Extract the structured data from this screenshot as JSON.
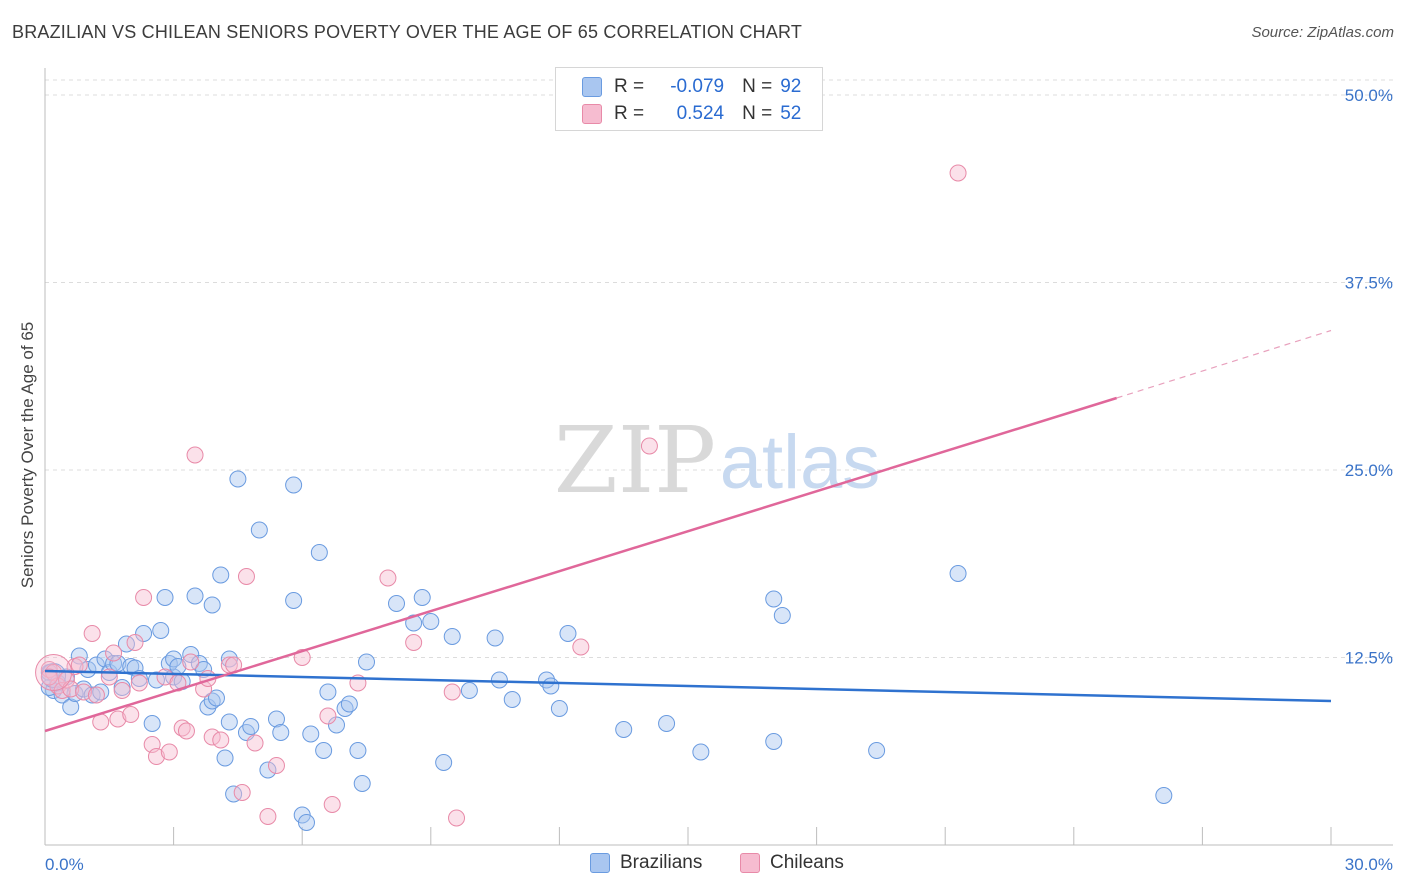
{
  "header": {
    "title": "BRAZILIAN VS CHILEAN SENIORS POVERTY OVER THE AGE OF 65 CORRELATION CHART",
    "source": "Source: ZipAtlas.com"
  },
  "watermark": {
    "zip": "ZIP",
    "atlas": "atlas"
  },
  "legend": {
    "rows": [
      {
        "r_label": "R =",
        "r_value": "-0.079",
        "n_label": "N =",
        "n_value": "92",
        "color": "#a9c6f0",
        "border": "#6a9be0"
      },
      {
        "r_label": "R =",
        "r_value": "0.524",
        "n_label": "N =",
        "n_value": "52",
        "color": "#f6bcd0",
        "border": "#e88aa8"
      }
    ]
  },
  "bottom_legend": {
    "brazilians": "Brazilians",
    "chileans": "Chileans"
  },
  "chart_data": {
    "type": "scatter",
    "title": "BRAZILIAN VS CHILEAN SENIORS POVERTY OVER THE AGE OF 65 CORRELATION CHART",
    "xlabel": "",
    "ylabel": "Seniors Poverty Over the Age of 65",
    "xlim": [
      0,
      30
    ],
    "ylim": [
      0,
      50
    ],
    "x_tick_labels": [
      "0.0%",
      "30.0%"
    ],
    "y_ticks": [
      12.5,
      25.0,
      37.5,
      50.0
    ],
    "y_tick_labels": [
      "12.5%",
      "25.0%",
      "37.5%",
      "50.0%"
    ],
    "grid": true,
    "legend_position": "top-center",
    "series": [
      {
        "name": "Brazilians",
        "color": "#6a9be0",
        "fill": "#a9c6f0",
        "r": "-0.079",
        "n": "92",
        "trend": {
          "x": [
            0,
            30
          ],
          "y": [
            11.6,
            9.6
          ]
        },
        "points": [
          [
            0.1,
            11.5
          ],
          [
            0.2,
            10.3
          ],
          [
            0.3,
            10.8
          ],
          [
            0.4,
            10.0
          ],
          [
            0.5,
            11.2
          ],
          [
            0.6,
            9.2
          ],
          [
            0.7,
            10.1
          ],
          [
            0.8,
            12.6
          ],
          [
            0.9,
            10.4
          ],
          [
            1.0,
            11.7
          ],
          [
            1.1,
            10.0
          ],
          [
            1.2,
            12.0
          ],
          [
            1.3,
            10.2
          ],
          [
            1.4,
            12.4
          ],
          [
            1.5,
            11.5
          ],
          [
            1.6,
            12.1
          ],
          [
            1.7,
            12.1
          ],
          [
            1.8,
            10.5
          ],
          [
            1.9,
            13.4
          ],
          [
            2.0,
            11.9
          ],
          [
            2.1,
            11.8
          ],
          [
            2.2,
            11.1
          ],
          [
            2.3,
            14.1
          ],
          [
            2.5,
            8.1
          ],
          [
            2.6,
            11.0
          ],
          [
            2.7,
            14.3
          ],
          [
            2.8,
            16.5
          ],
          [
            2.9,
            12.1
          ],
          [
            3.0,
            11.2
          ],
          [
            3.0,
            12.4
          ],
          [
            3.1,
            11.9
          ],
          [
            3.2,
            10.9
          ],
          [
            3.4,
            12.7
          ],
          [
            3.5,
            16.6
          ],
          [
            3.6,
            12.1
          ],
          [
            3.7,
            11.7
          ],
          [
            3.8,
            9.2
          ],
          [
            3.9,
            9.6
          ],
          [
            3.9,
            16.0
          ],
          [
            4.0,
            9.8
          ],
          [
            4.1,
            18.0
          ],
          [
            4.2,
            5.8
          ],
          [
            4.3,
            8.2
          ],
          [
            4.3,
            12.4
          ],
          [
            4.4,
            3.4
          ],
          [
            4.5,
            24.4
          ],
          [
            4.7,
            7.5
          ],
          [
            4.8,
            7.9
          ],
          [
            5.0,
            21.0
          ],
          [
            5.2,
            5.0
          ],
          [
            5.4,
            8.4
          ],
          [
            5.5,
            7.5
          ],
          [
            5.8,
            16.3
          ],
          [
            5.8,
            24.0
          ],
          [
            6.0,
            2.0
          ],
          [
            6.1,
            1.5
          ],
          [
            6.2,
            7.4
          ],
          [
            6.4,
            19.5
          ],
          [
            6.5,
            6.3
          ],
          [
            6.6,
            10.2
          ],
          [
            6.8,
            8.0
          ],
          [
            7.0,
            9.1
          ],
          [
            7.1,
            9.4
          ],
          [
            7.3,
            6.3
          ],
          [
            7.4,
            4.1
          ],
          [
            7.5,
            12.2
          ],
          [
            8.2,
            16.1
          ],
          [
            8.6,
            14.8
          ],
          [
            8.8,
            16.5
          ],
          [
            9.0,
            14.9
          ],
          [
            9.3,
            5.5
          ],
          [
            9.5,
            13.9
          ],
          [
            9.9,
            10.3
          ],
          [
            10.5,
            13.8
          ],
          [
            10.6,
            11.0
          ],
          [
            10.9,
            9.7
          ],
          [
            11.7,
            11.0
          ],
          [
            11.8,
            10.6
          ],
          [
            12.0,
            9.1
          ],
          [
            12.2,
            14.1
          ],
          [
            13.5,
            7.7
          ],
          [
            14.5,
            8.1
          ],
          [
            15.3,
            6.2
          ],
          [
            17.0,
            16.4
          ],
          [
            17.2,
            15.3
          ],
          [
            17.0,
            6.9
          ],
          [
            19.4,
            6.3
          ],
          [
            21.3,
            18.1
          ],
          [
            26.1,
            3.3
          ],
          [
            0.1,
            10.5
          ]
        ]
      },
      {
        "name": "Chileans",
        "color": "#e88aa8",
        "fill": "#f6bcd0",
        "r": "0.524",
        "n": "52",
        "trend": {
          "x": [
            0,
            25
          ],
          "y": [
            7.6,
            29.8
          ]
        },
        "trend_dashed": {
          "x": [
            25,
            30
          ],
          "y": [
            29.8,
            34.3
          ]
        },
        "points": [
          [
            0.1,
            11.7
          ],
          [
            0.2,
            11.5
          ],
          [
            0.3,
            10.6
          ],
          [
            0.4,
            10.3
          ],
          [
            0.5,
            11.0
          ],
          [
            0.6,
            10.4
          ],
          [
            0.7,
            11.9
          ],
          [
            0.8,
            12.0
          ],
          [
            0.9,
            10.2
          ],
          [
            1.1,
            14.1
          ],
          [
            1.2,
            10.0
          ],
          [
            1.3,
            8.2
          ],
          [
            1.5,
            11.2
          ],
          [
            1.6,
            12.8
          ],
          [
            1.7,
            8.4
          ],
          [
            1.8,
            10.3
          ],
          [
            2.0,
            8.7
          ],
          [
            2.1,
            13.5
          ],
          [
            2.2,
            10.8
          ],
          [
            2.3,
            16.5
          ],
          [
            2.5,
            6.7
          ],
          [
            2.6,
            5.9
          ],
          [
            2.8,
            11.2
          ],
          [
            2.9,
            6.2
          ],
          [
            3.1,
            10.8
          ],
          [
            3.2,
            7.8
          ],
          [
            3.3,
            7.6
          ],
          [
            3.4,
            12.2
          ],
          [
            3.5,
            26.0
          ],
          [
            3.7,
            10.4
          ],
          [
            3.8,
            11.1
          ],
          [
            3.9,
            7.2
          ],
          [
            4.1,
            7.0
          ],
          [
            4.3,
            12.0
          ],
          [
            4.4,
            12.0
          ],
          [
            4.6,
            3.5
          ],
          [
            4.7,
            17.9
          ],
          [
            4.9,
            6.8
          ],
          [
            5.2,
            1.9
          ],
          [
            5.4,
            5.3
          ],
          [
            6.0,
            12.5
          ],
          [
            6.6,
            8.6
          ],
          [
            6.7,
            2.7
          ],
          [
            7.3,
            10.8
          ],
          [
            8.0,
            17.8
          ],
          [
            8.6,
            13.5
          ],
          [
            9.5,
            10.2
          ],
          [
            9.6,
            1.8
          ],
          [
            12.5,
            13.2
          ],
          [
            14.1,
            26.6
          ],
          [
            21.3,
            44.8
          ],
          [
            0.1,
            11.2
          ]
        ]
      }
    ]
  }
}
